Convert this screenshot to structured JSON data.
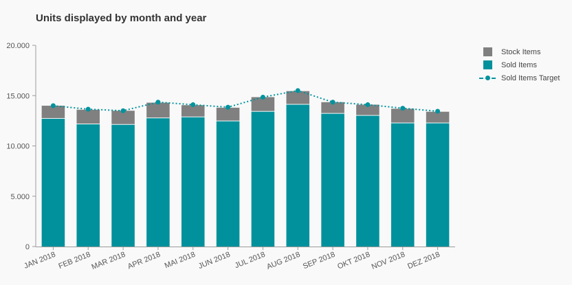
{
  "chart_data": {
    "type": "bar",
    "title": "Units displayed by month and year",
    "categories": [
      "JAN 2018",
      "FEB 2018",
      "MAR 2018",
      "APR 2018",
      "MAI 2018",
      "JUN 2018",
      "JUL 2018",
      "AUG 2018",
      "SEP 2018",
      "OKT 2018",
      "NOV 2018",
      "DEZ 2018"
    ],
    "stacked": true,
    "series": [
      {
        "name": "Sold Items",
        "kind": "bar",
        "color": "#00919c",
        "values": [
          12700,
          12150,
          12100,
          12750,
          12850,
          12450,
          13400,
          14100,
          13200,
          13000,
          12250,
          12250
        ]
      },
      {
        "name": "Stock Items",
        "kind": "bar",
        "color": "#808080",
        "values": [
          1300,
          1450,
          1400,
          1550,
          1200,
          1350,
          1450,
          1350,
          1150,
          1100,
          1450,
          1150
        ]
      },
      {
        "name": "Sold Items Target",
        "kind": "line",
        "style": "dotted",
        "color": "#00939e",
        "values": [
          14000,
          13650,
          13500,
          14350,
          14100,
          13850,
          14850,
          15500,
          14350,
          14100,
          13750,
          13450
        ]
      }
    ],
    "ylim": [
      0,
      20000
    ],
    "yticks": [
      0,
      5000,
      10000,
      15000,
      20000
    ],
    "ytick_labels": [
      "0",
      "5.000",
      "10.000",
      "15.000",
      "20.000"
    ],
    "xlabel": "",
    "ylabel": "",
    "grid": false,
    "legend": {
      "position": "right",
      "items": [
        {
          "label": "Stock Items",
          "color": "#808080",
          "type": "box"
        },
        {
          "label": "Sold Items",
          "color": "#00919c",
          "type": "box"
        },
        {
          "label": "Sold Items Target",
          "color": "#00939e",
          "type": "line"
        }
      ]
    }
  }
}
